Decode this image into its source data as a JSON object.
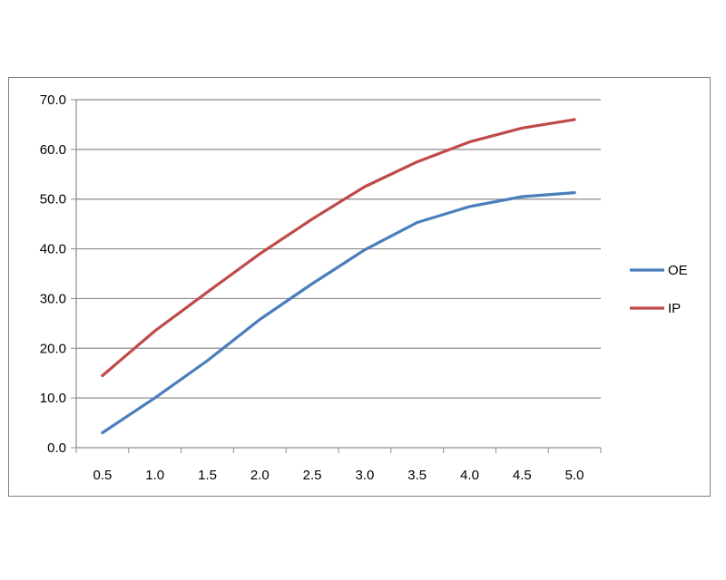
{
  "chart_data": {
    "type": "line",
    "x": [
      "0.5",
      "1.0",
      "1.5",
      "2.0",
      "2.5",
      "3.0",
      "3.5",
      "4.0",
      "4.5",
      "5.0"
    ],
    "series": [
      {
        "name": "OE",
        "color": "#4a7ebb",
        "values": [
          3.0,
          10.0,
          17.5,
          25.8,
          33.0,
          39.8,
          45.3,
          48.5,
          50.5,
          51.3
        ]
      },
      {
        "name": "IP",
        "color": "#be4b48",
        "values": [
          14.5,
          23.5,
          31.3,
          39.0,
          46.0,
          52.5,
          57.5,
          61.5,
          64.3,
          66.0
        ]
      }
    ],
    "ylim": [
      0,
      70
    ],
    "y_ticks": [
      "0.0",
      "10.0",
      "20.0",
      "30.0",
      "40.0",
      "50.0",
      "60.0",
      "70.0"
    ],
    "grid": true,
    "legend_position": "right",
    "title": "",
    "xlabel": "",
    "ylabel": ""
  }
}
